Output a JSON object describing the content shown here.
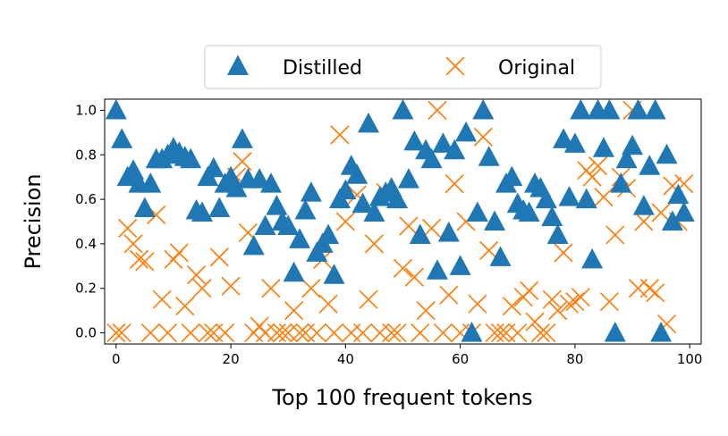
{
  "chart_data": {
    "type": "scatter",
    "title": "",
    "xlabel": "Top 100 frequent tokens",
    "ylabel": "Precision",
    "xlim": [
      -2,
      102
    ],
    "ylim": [
      -0.05,
      1.05
    ],
    "xticks": [
      "0",
      "20",
      "40",
      "60",
      "80",
      "100"
    ],
    "yticks": [
      "0.0",
      "0.2",
      "0.4",
      "0.6",
      "0.8",
      "1.0"
    ],
    "legend": {
      "placement": "top-center",
      "ncol": 2
    },
    "series": [
      {
        "name": "Distilled",
        "marker": "triangle",
        "color": "#1f77b4",
        "values": [
          1.0,
          0.87,
          0.7,
          0.73,
          0.67,
          0.56,
          0.67,
          0.78,
          0.78,
          0.8,
          0.83,
          0.81,
          0.79,
          0.78,
          0.55,
          0.54,
          0.7,
          0.74,
          0.56,
          0.67,
          0.7,
          0.65,
          0.87,
          0.69,
          0.39,
          0.69,
          0.48,
          0.67,
          0.57,
          0.5,
          0.48,
          0.27,
          0.42,
          0.55,
          0.63,
          0.36,
          0.4,
          0.44,
          0.26,
          0.6,
          0.64,
          0.75,
          0.71,
          0.58,
          0.94,
          0.54,
          0.61,
          0.63,
          0.65,
          0.6,
          1.0,
          0.69,
          0.86,
          0.44,
          0.82,
          0.78,
          0.28,
          0.85,
          0.45,
          0.82,
          0.3,
          0.9,
          0.0,
          0.54,
          1.0,
          0.79,
          0.5,
          0.34,
          0.67,
          0.7,
          0.58,
          0.55,
          0.54,
          0.67,
          0.65,
          0.6,
          0.52,
          0.44,
          0.87,
          0.61,
          0.85,
          1.0,
          0.6,
          0.33,
          1.0,
          0.83,
          1.0,
          0.0,
          0.67,
          0.78,
          0.84,
          1.0,
          0.57,
          0.75,
          1.0,
          0.0,
          0.8,
          0.5,
          0.62,
          0.54
        ]
      },
      {
        "name": "Original",
        "marker": "x",
        "color": "#ff7f0e",
        "values": [
          0.0,
          0.0,
          0.47,
          0.4,
          0.33,
          0.32,
          0.0,
          0.53,
          0.15,
          0.0,
          0.33,
          0.36,
          0.12,
          0.0,
          0.26,
          0.2,
          0.0,
          0.0,
          0.34,
          0.0,
          0.21,
          0.7,
          0.77,
          0.45,
          0.0,
          0.03,
          0.0,
          0.2,
          0.0,
          0.0,
          0.0,
          0.1,
          0.0,
          0.0,
          0.2,
          0.0,
          0.33,
          0.13,
          0.0,
          0.89,
          0.5,
          0.0,
          0.62,
          0.0,
          0.15,
          0.4,
          0.0,
          0.63,
          0.0,
          0.0,
          0.29,
          0.48,
          0.25,
          0.0,
          0.1,
          0.47,
          1.0,
          0.0,
          0.17,
          0.67,
          0.0,
          0.5,
          0.0,
          0.13,
          0.88,
          0.37,
          0.0,
          0.0,
          0.0,
          0.12,
          0.0,
          0.16,
          0.19,
          0.05,
          0.0,
          0.0,
          0.15,
          0.1,
          0.36,
          0.13,
          0.14,
          0.16,
          0.73,
          0.7,
          0.75,
          0.61,
          0.14,
          0.44,
          0.7,
          0.65,
          1.0,
          0.2,
          0.5,
          0.2,
          0.18,
          0.54,
          0.04,
          0.66,
          0.5,
          0.67
        ]
      }
    ]
  }
}
